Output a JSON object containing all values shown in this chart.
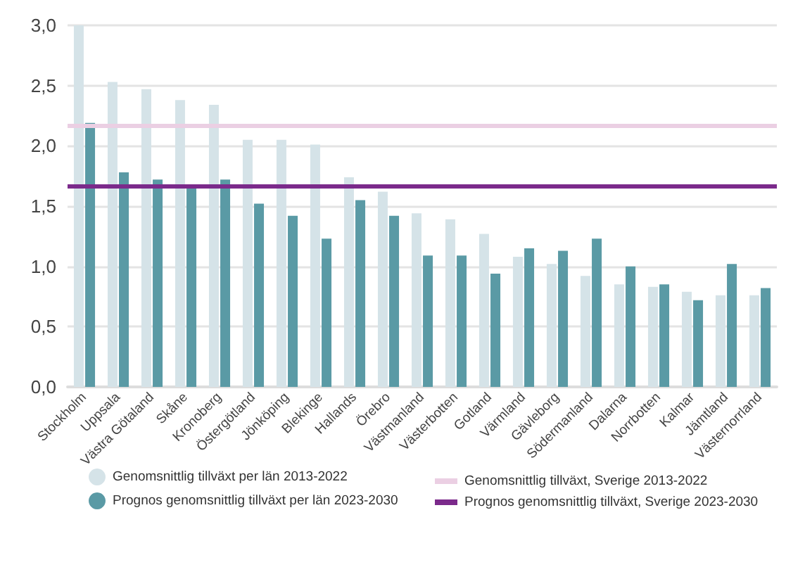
{
  "chart_data": {
    "type": "bar",
    "categories": [
      "Stockholm",
      "Uppsala",
      "Västra Götaland",
      "Skåne",
      "Kronoberg",
      "Östergötland",
      "Jönköping",
      "Blekinge",
      "Hallands",
      "Örebro",
      "Västmanland",
      "Västerbotten",
      "Gotland",
      "Värmland",
      "Gävleborg",
      "Södermanland",
      "Dalarna",
      "Norrbotten",
      "Kalmar",
      "Jämtland",
      "Västernorrland"
    ],
    "series": [
      {
        "name": "Genomsnittlig tillväxt per län 2013-2022",
        "color": "#d5e3e8",
        "values": [
          3.0,
          2.53,
          2.47,
          2.38,
          2.34,
          2.05,
          2.05,
          2.01,
          1.74,
          1.62,
          1.44,
          1.39,
          1.27,
          1.08,
          1.02,
          0.92,
          0.85,
          0.83,
          0.79,
          0.76,
          0.76
        ]
      },
      {
        "name": "Prognos genomsnittlig tillväxt per län 2023-2030",
        "color": "#5a9aa5",
        "values": [
          2.19,
          1.78,
          1.72,
          1.66,
          1.72,
          1.52,
          1.42,
          1.23,
          1.55,
          1.42,
          1.09,
          1.09,
          0.94,
          1.15,
          1.13,
          1.23,
          1.0,
          0.85,
          0.72,
          1.02,
          0.82
        ]
      }
    ],
    "ref_lines": [
      {
        "axis": "y",
        "value": 2.17,
        "label": "Genomsnittlig tillväxt, Sverige 2013-2022",
        "color": "#ebcfe3"
      },
      {
        "axis": "y",
        "value": 1.67,
        "label": "Prognos genomsnittlig tillväxt, Sverige 2023-2030",
        "color": "#7b2a8b"
      }
    ],
    "ylim": [
      0,
      3
    ],
    "yticks": [
      {
        "value": 0,
        "label": "0,0"
      },
      {
        "value": 0.5,
        "label": "0,5"
      },
      {
        "value": 1,
        "label": "1,0"
      },
      {
        "value": 1.5,
        "label": "1,5"
      },
      {
        "value": 2,
        "label": "2,0"
      },
      {
        "value": 2.5,
        "label": "2,5"
      },
      {
        "value": 3,
        "label": "3,0"
      }
    ],
    "grid": "y",
    "legend": "bottom"
  }
}
